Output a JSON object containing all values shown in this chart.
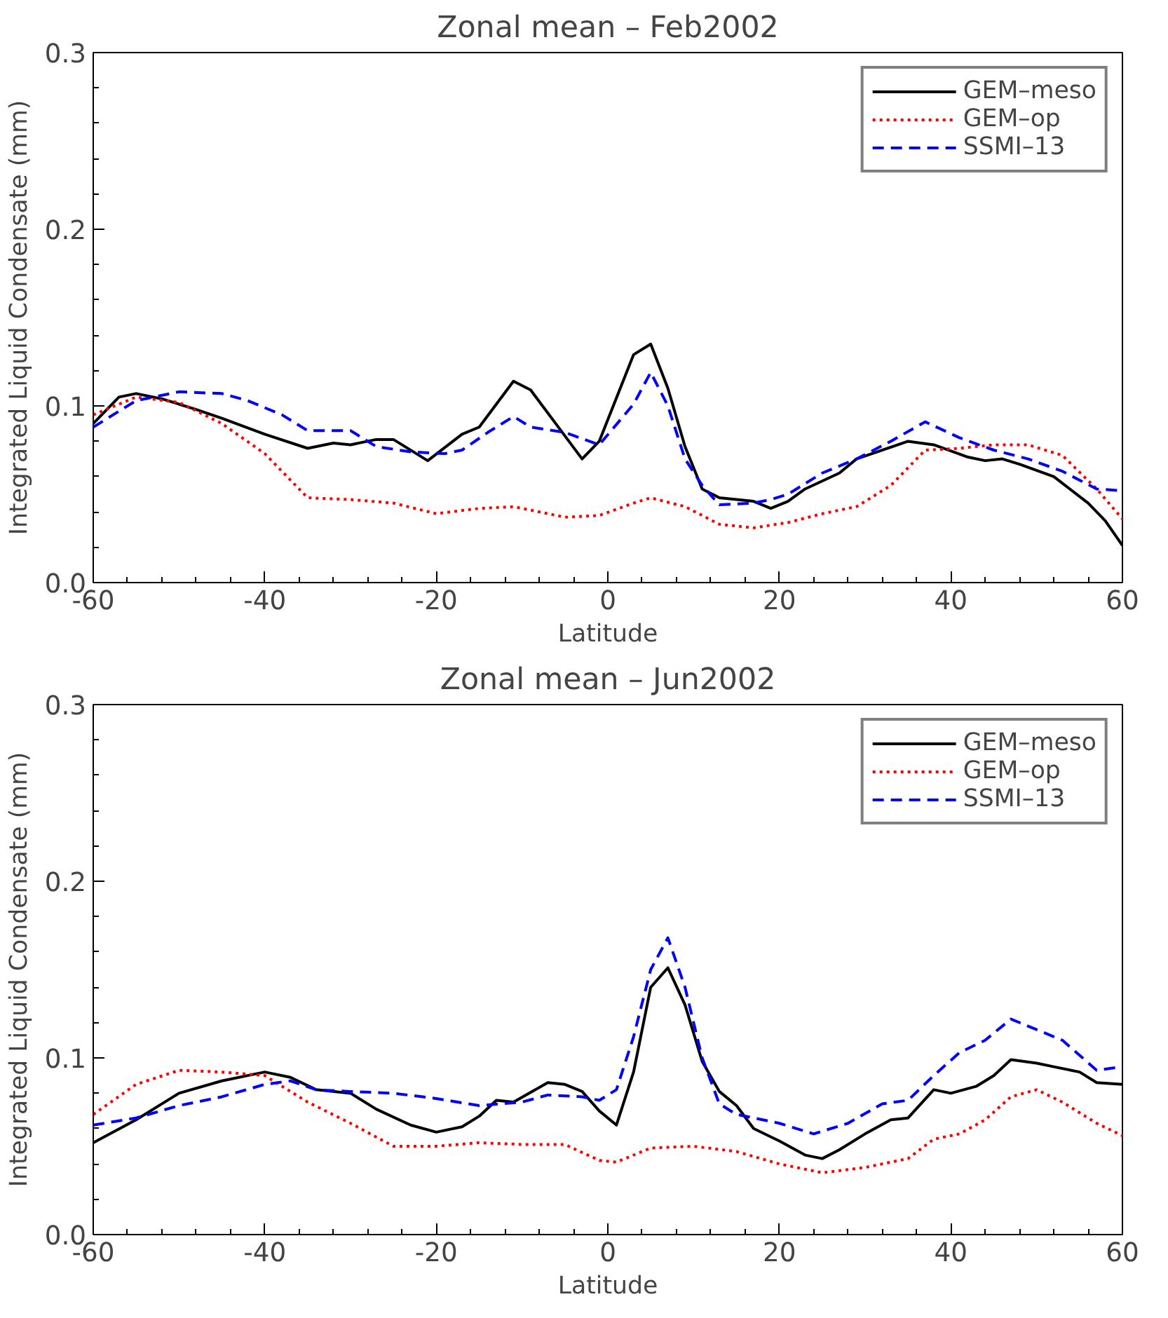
{
  "chart_data": [
    {
      "type": "line",
      "title": "Zonal mean – Feb2002",
      "xlabel": "Latitude",
      "ylabel": "Integrated Liquid Condensate (mm)",
      "xlim": [
        -60,
        60
      ],
      "ylim": [
        0,
        0.3
      ],
      "xticks": [
        -60,
        -40,
        -20,
        0,
        20,
        40,
        60
      ],
      "yticks": [
        {
          "value": 0,
          "label": "0.0"
        },
        0.1,
        0.2,
        0.3
      ],
      "grid": false,
      "legend": "top right",
      "series": [
        {
          "name": "GEM–meso",
          "color": "#000000",
          "line_style": "solid",
          "x": [
            -60,
            -57,
            -55,
            -52,
            -48,
            -45,
            -40,
            -35,
            -32,
            -30,
            -27,
            -25,
            -21,
            -17,
            -15,
            -11,
            -9,
            -3,
            -1,
            3,
            5,
            7,
            9,
            11,
            13,
            17,
            19,
            21,
            23,
            27,
            29,
            35,
            38,
            42,
            44,
            46,
            48,
            52,
            56,
            58,
            60
          ],
          "values": [
            0.09,
            0.105,
            0.107,
            0.104,
            0.098,
            0.093,
            0.084,
            0.076,
            0.079,
            0.078,
            0.081,
            0.081,
            0.069,
            0.084,
            0.088,
            0.114,
            0.109,
            0.07,
            0.08,
            0.129,
            0.135,
            0.11,
            0.077,
            0.053,
            0.048,
            0.046,
            0.042,
            0.046,
            0.053,
            0.062,
            0.07,
            0.08,
            0.078,
            0.071,
            0.069,
            0.07,
            0.067,
            0.06,
            0.045,
            0.035,
            0.021
          ]
        },
        {
          "name": "GEM–op",
          "color": "#ff0000",
          "line_style": "dotted",
          "x": [
            -60,
            -55,
            -50,
            -45,
            -40,
            -35,
            -30,
            -25,
            -20,
            -15,
            -11,
            -5,
            -1,
            3,
            5,
            9,
            13,
            17,
            21,
            25,
            29,
            33,
            37,
            41,
            45,
            49,
            53,
            57,
            60
          ],
          "values": [
            0.095,
            0.105,
            0.102,
            0.09,
            0.073,
            0.048,
            0.047,
            0.045,
            0.039,
            0.042,
            0.043,
            0.037,
            0.038,
            0.045,
            0.048,
            0.043,
            0.033,
            0.031,
            0.034,
            0.039,
            0.043,
            0.055,
            0.075,
            0.076,
            0.078,
            0.078,
            0.072,
            0.053,
            0.036
          ]
        },
        {
          "name": "SSMI–13",
          "color": "#0000ff",
          "line_style": "dashed",
          "x": [
            -60,
            -57,
            -55,
            -50,
            -45,
            -42,
            -38,
            -35,
            -30,
            -27,
            -23,
            -19,
            -17,
            -14,
            -11,
            -9,
            -5,
            -1,
            3,
            5,
            7,
            9,
            11,
            13,
            17,
            19,
            21,
            25,
            29,
            33,
            37,
            41,
            45,
            49,
            53,
            57,
            60
          ],
          "values": [
            0.088,
            0.097,
            0.103,
            0.108,
            0.107,
            0.103,
            0.095,
            0.086,
            0.086,
            0.077,
            0.074,
            0.073,
            0.075,
            0.085,
            0.094,
            0.088,
            0.085,
            0.078,
            0.101,
            0.119,
            0.1,
            0.07,
            0.055,
            0.044,
            0.045,
            0.047,
            0.05,
            0.062,
            0.07,
            0.08,
            0.091,
            0.082,
            0.075,
            0.07,
            0.063,
            0.053,
            0.052
          ]
        }
      ]
    },
    {
      "type": "line",
      "title": "Zonal mean – Jun2002",
      "xlabel": "Latitude",
      "ylabel": "Integrated Liquid Condensate (mm)",
      "xlim": [
        -60,
        60
      ],
      "ylim": [
        0,
        0.3
      ],
      "xticks": [
        -60,
        -40,
        -20,
        0,
        20,
        40,
        60
      ],
      "yticks": [
        {
          "value": 0,
          "label": "0.0"
        },
        0.1,
        0.2,
        0.3
      ],
      "grid": false,
      "legend": "top right",
      "series": [
        {
          "name": "GEM–meso",
          "color": "#000000",
          "line_style": "solid",
          "x": [
            -60,
            -55,
            -50,
            -45,
            -40,
            -37,
            -34,
            -30,
            -27,
            -23,
            -20,
            -17,
            -15,
            -13,
            -11,
            -7,
            -5,
            -3,
            -1,
            1,
            3,
            5,
            7,
            9,
            11,
            13,
            15,
            17,
            20,
            23,
            25,
            27,
            30,
            33,
            35,
            38,
            40,
            43,
            45,
            47,
            50,
            52,
            55,
            57,
            60
          ],
          "values": [
            0.052,
            0.065,
            0.08,
            0.087,
            0.092,
            0.089,
            0.082,
            0.08,
            0.071,
            0.062,
            0.058,
            0.061,
            0.067,
            0.076,
            0.075,
            0.086,
            0.085,
            0.081,
            0.07,
            0.062,
            0.092,
            0.14,
            0.151,
            0.13,
            0.098,
            0.081,
            0.073,
            0.06,
            0.053,
            0.045,
            0.043,
            0.048,
            0.057,
            0.065,
            0.066,
            0.082,
            0.08,
            0.084,
            0.09,
            0.099,
            0.097,
            0.095,
            0.092,
            0.086,
            0.085
          ]
        },
        {
          "name": "GEM–op",
          "color": "#ff0000",
          "line_style": "dotted",
          "x": [
            -60,
            -55,
            -50,
            -45,
            -40,
            -35,
            -30,
            -25,
            -20,
            -15,
            -10,
            -5,
            -1,
            1,
            5,
            10,
            15,
            20,
            25,
            30,
            35,
            38,
            41,
            44,
            47,
            50,
            53,
            57,
            60
          ],
          "values": [
            0.068,
            0.085,
            0.093,
            0.092,
            0.09,
            0.075,
            0.063,
            0.05,
            0.05,
            0.052,
            0.051,
            0.051,
            0.042,
            0.041,
            0.049,
            0.05,
            0.047,
            0.04,
            0.035,
            0.038,
            0.043,
            0.054,
            0.057,
            0.065,
            0.078,
            0.082,
            0.075,
            0.063,
            0.056
          ]
        },
        {
          "name": "SSMI–13",
          "color": "#0000ff",
          "line_style": "dashed",
          "x": [
            -60,
            -55,
            -50,
            -45,
            -40,
            -37,
            -34,
            -30,
            -25,
            -20,
            -15,
            -10,
            -7,
            -3,
            -1,
            1,
            3,
            5,
            7,
            9,
            11,
            13,
            15,
            20,
            24,
            28,
            32,
            35,
            38,
            41,
            44,
            47,
            50,
            53,
            57,
            60
          ],
          "values": [
            0.062,
            0.066,
            0.073,
            0.078,
            0.085,
            0.087,
            0.082,
            0.081,
            0.08,
            0.077,
            0.073,
            0.075,
            0.079,
            0.078,
            0.076,
            0.082,
            0.112,
            0.15,
            0.168,
            0.14,
            0.1,
            0.074,
            0.068,
            0.063,
            0.057,
            0.063,
            0.074,
            0.076,
            0.09,
            0.103,
            0.11,
            0.122,
            0.116,
            0.11,
            0.093,
            0.095
          ]
        }
      ]
    }
  ]
}
